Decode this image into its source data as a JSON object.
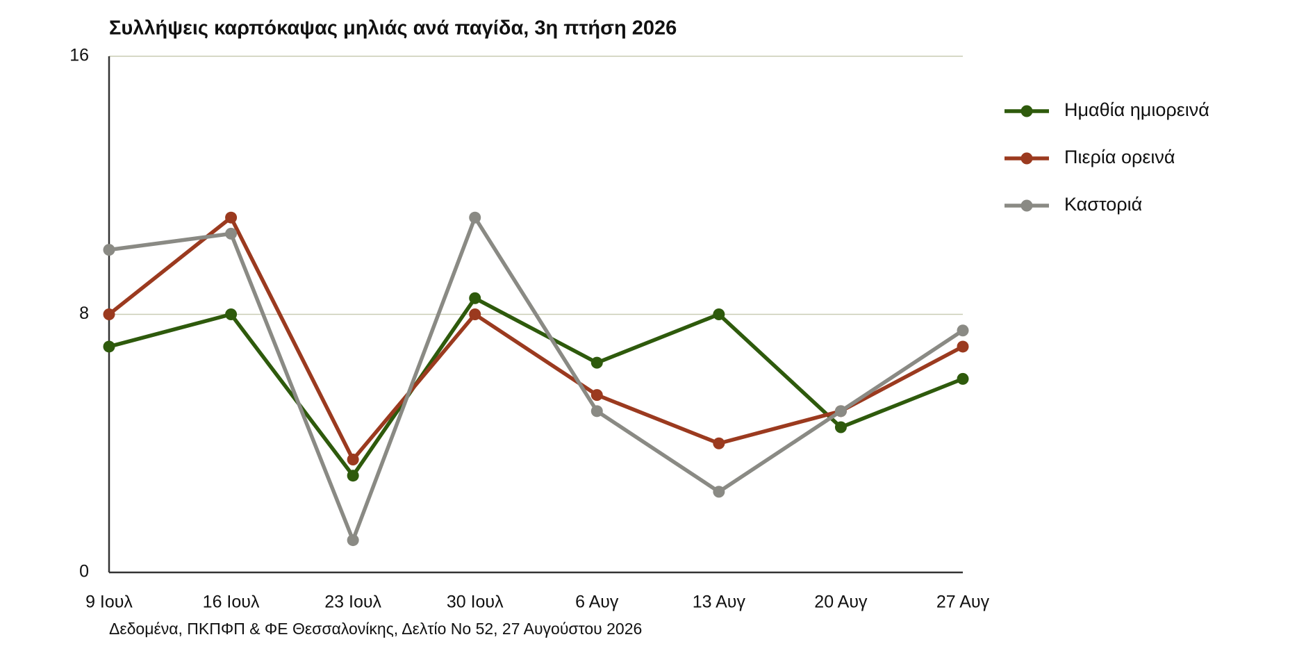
{
  "chart_data": {
    "type": "line",
    "title": "Συλλήψεις καρπόκαψας μηλιάς ανά παγίδα, 3η πτήση 2026",
    "source": "Δεδομένα, ΠΚΠΦΠ & ΦΕ Θεσσαλονίκης, Δελτίο Νο 52, 27 Αυγούστου 2026",
    "categories": [
      "9 Ιουλ",
      "16 Ιουλ",
      "23 Ιουλ",
      "30 Ιουλ",
      "6 Αυγ",
      "13 Αυγ",
      "20 Αυγ",
      "27 Αυγ"
    ],
    "series": [
      {
        "name": "Ημαθία ημιορεινά",
        "color": "#2e5a0c",
        "values": [
          7,
          8,
          3,
          8.5,
          6.5,
          8,
          4.5,
          6
        ]
      },
      {
        "name": "Πιερία ορεινά",
        "color": "#9b3a1f",
        "values": [
          8,
          11,
          3.5,
          8,
          5.5,
          4,
          5,
          7
        ]
      },
      {
        "name": "Καστοριά",
        "color": "#8a8a84",
        "values": [
          10,
          10.5,
          1,
          11,
          5,
          2.5,
          5,
          7.5
        ]
      }
    ],
    "ylim": [
      0,
      16
    ],
    "yticks": [
      0,
      8,
      16
    ],
    "grid": true,
    "legend": "right"
  }
}
